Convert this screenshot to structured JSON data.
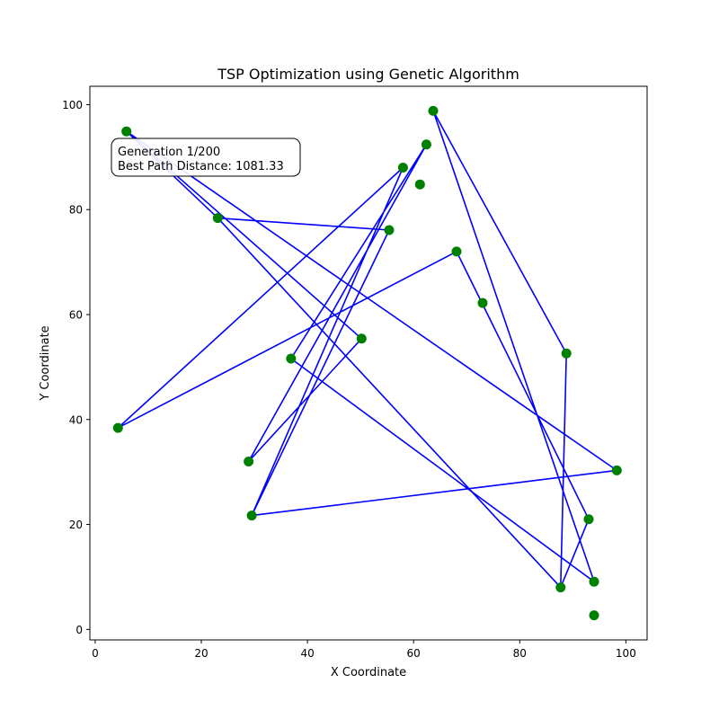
{
  "chart_data": {
    "type": "line",
    "title": "TSP Optimization using Genetic Algorithm",
    "xlabel": "X Coordinate",
    "ylabel": "Y Coordinate",
    "xlim": [
      -1,
      104
    ],
    "ylim": [
      -2,
      103.5
    ],
    "xticks": [
      0,
      20,
      40,
      60,
      80,
      100
    ],
    "yticks": [
      0,
      20,
      40,
      60,
      80,
      100
    ],
    "grid": false,
    "annotation": {
      "line1": "Generation 1/200",
      "line2": "Best Path Distance: 1081.33",
      "placement": "top-left"
    },
    "line_color": "#0000ff",
    "point_color": "#008000",
    "path": [
      [
        5.9,
        94.9
      ],
      [
        50.2,
        55.4
      ],
      [
        28.9,
        32.0
      ],
      [
        62.4,
        92.4
      ],
      [
        36.9,
        51.6
      ],
      [
        94.0,
        9.1
      ],
      [
        63.7,
        98.8
      ],
      [
        88.8,
        52.6
      ],
      [
        87.7,
        8.0
      ],
      [
        93.0,
        21.0
      ],
      [
        68.1,
        72.0
      ],
      [
        4.3,
        38.4
      ],
      [
        58.0,
        88.0
      ],
      [
        29.5,
        21.7
      ],
      [
        98.3,
        30.3
      ],
      [
        5.9,
        94.9
      ],
      [
        23.1,
        78.4
      ],
      [
        55.4,
        76.1
      ],
      [
        29.5,
        21.7
      ]
    ],
    "path_tail": [
      [
        87.7,
        8.0
      ],
      [
        23.1,
        78.4
      ]
    ],
    "cities": [
      [
        5.9,
        94.9
      ],
      [
        63.7,
        98.8
      ],
      [
        62.4,
        92.4
      ],
      [
        58.0,
        88.0
      ],
      [
        61.2,
        84.8
      ],
      [
        23.1,
        78.4
      ],
      [
        55.4,
        76.1
      ],
      [
        68.1,
        72.0
      ],
      [
        73.0,
        62.2
      ],
      [
        50.2,
        55.4
      ],
      [
        88.8,
        52.6
      ],
      [
        36.9,
        51.6
      ],
      [
        4.3,
        38.4
      ],
      [
        28.9,
        32.0
      ],
      [
        98.3,
        30.3
      ],
      [
        29.5,
        21.7
      ],
      [
        93.0,
        21.0
      ],
      [
        94.0,
        9.1
      ],
      [
        87.7,
        8.0
      ],
      [
        94.0,
        2.7
      ]
    ]
  }
}
